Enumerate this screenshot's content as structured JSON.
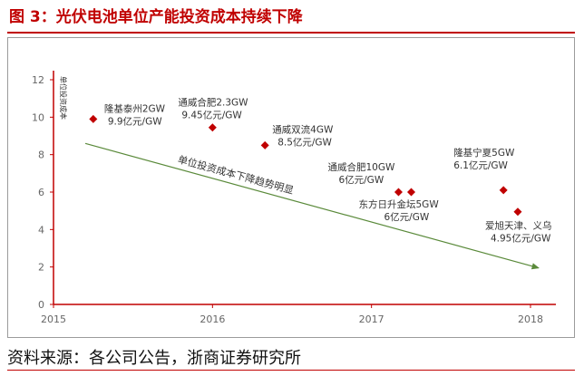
{
  "figure": {
    "title": "图 3：光伏电池单位产能投资成本持续下降",
    "source": "资料来源：各公司公告，浙商证券研究所"
  },
  "colors": {
    "title": "#c00000",
    "axis": "#c00000",
    "point": "#c00000",
    "trend": "#5a8a3a",
    "annotation": "#333333"
  },
  "chart_data": {
    "type": "scatter",
    "title": "",
    "xlabel": "",
    "ylabel": "单位投资成本",
    "xlim": [
      2015,
      2018
    ],
    "ylim": [
      0,
      12
    ],
    "x_ticks": [
      "2015",
      "2016",
      "2017",
      "2018"
    ],
    "y_ticks": [
      0,
      2,
      4,
      6,
      8,
      10,
      12
    ],
    "grid": false,
    "points": [
      {
        "x": 2015.25,
        "y": 9.9,
        "label_line1": "隆基泰州2GW",
        "label_line2": "9.9亿元/GW"
      },
      {
        "x": 2016.0,
        "y": 9.45,
        "label_line1": "通威合肥2.3GW",
        "label_line2": "9.45亿元/GW"
      },
      {
        "x": 2016.33,
        "y": 8.5,
        "label_line1": "通威双流4GW",
        "label_line2": "8.5亿元/GW"
      },
      {
        "x": 2017.17,
        "y": 6.0,
        "label_line1": "通威合肥10GW",
        "label_line2": "6亿元/GW"
      },
      {
        "x": 2017.25,
        "y": 6.0,
        "label_line1": "东方日升金坛5GW",
        "label_line2": "6亿元/GW"
      },
      {
        "x": 2017.83,
        "y": 6.1,
        "label_line1": "隆基宁夏5GW",
        "label_line2": "6.1亿元/GW"
      },
      {
        "x": 2017.92,
        "y": 4.95,
        "label_line1": "爱旭天津、义乌",
        "label_line2": "4.95亿元/GW"
      }
    ],
    "trend": {
      "label": "单位投资成本下降趋势明显",
      "start": {
        "x": 2015.2,
        "y": 8.6
      },
      "end": {
        "x": 2018.05,
        "y": 1.95
      }
    }
  }
}
